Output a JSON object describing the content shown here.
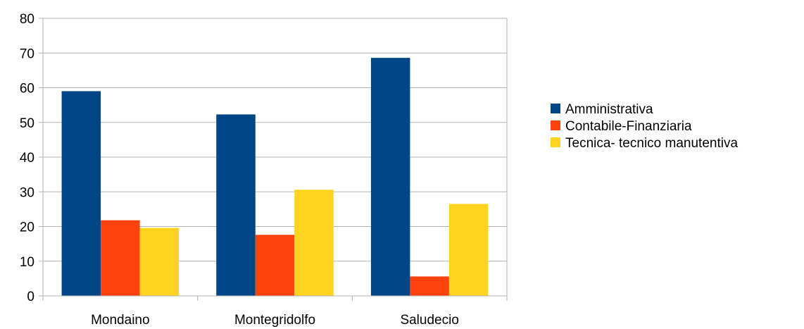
{
  "chart_data": {
    "type": "bar",
    "title": "",
    "xlabel": "",
    "ylabel": "",
    "categories": [
      "Mondaino",
      "Montegridolfo",
      "Saludecio"
    ],
    "series": [
      {
        "name": "Amministrativa",
        "color": "#004586",
        "values": [
          59,
          52.3,
          68.6
        ]
      },
      {
        "name": "Contabile-Finanziaria",
        "color": "#FF420E",
        "values": [
          21.8,
          17.6,
          5.6
        ]
      },
      {
        "name": "Tecnica- tecnico manutentiva",
        "color": "#FFD320",
        "values": [
          19.6,
          30.6,
          26.5
        ]
      }
    ],
    "ylim": [
      0,
      80
    ],
    "yticks": [
      "0",
      "10",
      "20",
      "30",
      "40",
      "50",
      "60",
      "70",
      "80"
    ],
    "grid": true,
    "legend_position": "right"
  }
}
